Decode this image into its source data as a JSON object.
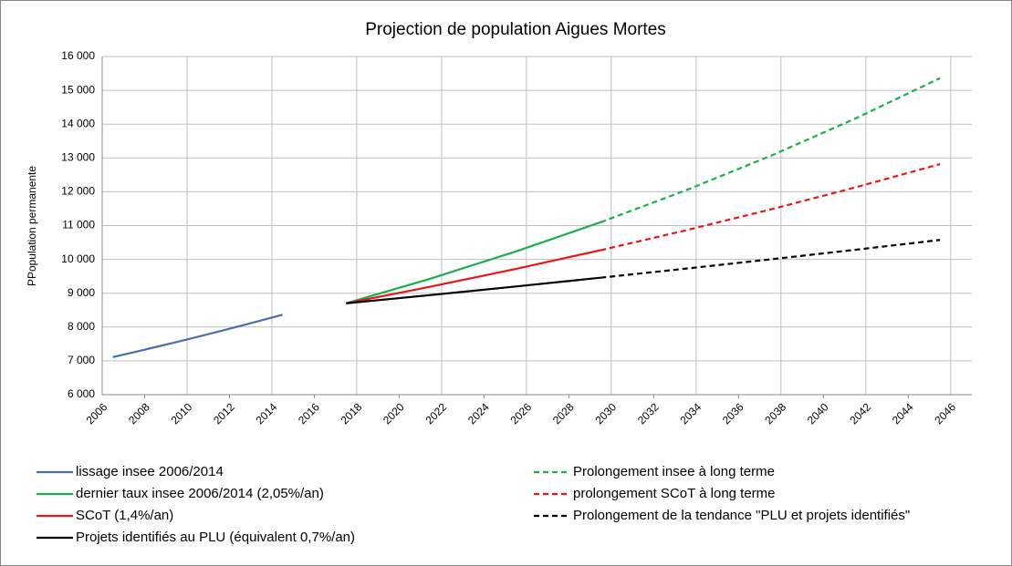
{
  "chart_data": {
    "type": "line",
    "title": "Projection de population Aigues Mortes",
    "y_label": "PPopulation permanente",
    "xlim": [
      2006,
      2047
    ],
    "xticks": [
      2006,
      2008,
      2010,
      2012,
      2014,
      2016,
      2018,
      2020,
      2022,
      2024,
      2026,
      2028,
      2030,
      2032,
      2034,
      2036,
      2038,
      2040,
      2042,
      2044,
      2046
    ],
    "ylim": [
      6000,
      16000
    ],
    "yticks": [
      {
        "value": 6000,
        "label": "6 000"
      },
      {
        "value": 7000,
        "label": "7 000"
      },
      {
        "value": 8000,
        "label": "8 000"
      },
      {
        "value": 9000,
        "label": "9 000"
      },
      {
        "value": 10000,
        "label": "10 000"
      },
      {
        "value": 11000,
        "label": "11 000"
      },
      {
        "value": 12000,
        "label": "12 000"
      },
      {
        "value": 13000,
        "label": "13 000"
      },
      {
        "value": 14000,
        "label": "14 000"
      },
      {
        "value": 15000,
        "label": "15 000"
      },
      {
        "value": 16000,
        "label": "16 000"
      }
    ],
    "grid": true,
    "series": [
      {
        "name": "lissage insee 2006/2014",
        "color": "#4a6fa5",
        "dashed": false,
        "x": [
          2006.5,
          2007.5,
          2008.5,
          2009.5,
          2010.5,
          2011.5,
          2012.5,
          2013.5,
          2014.5
        ],
        "values": [
          7110,
          7256,
          7405,
          7556,
          7711,
          7869,
          8031,
          8195,
          8363
        ]
      },
      {
        "name": "dernier taux insee 2006/2014 (2,05%/an)",
        "color": "#1aaf4b",
        "dashed": false,
        "x": [
          2017.5,
          2021.5,
          2025.5,
          2029.5
        ],
        "values": [
          8700,
          9436,
          10234,
          11100
        ]
      },
      {
        "name": "SCoT (1,4%/an)",
        "color": "#e8161b",
        "dashed": false,
        "x": [
          2017.5,
          2021.5,
          2025.5,
          2029.5
        ],
        "values": [
          8700,
          9195,
          9718,
          10272
        ]
      },
      {
        "name": "Projets identifiés au PLU (équivalent 0,7%/an)",
        "color": "#000000",
        "dashed": false,
        "x": [
          2017.5,
          2021.5,
          2025.5,
          2029.5
        ],
        "values": [
          8700,
          8946,
          9199,
          9459
        ]
      },
      {
        "name": "Prolongement insee à long terme",
        "color": "#1aaf4b",
        "dashed": true,
        "x": [
          2029.5,
          2033.5,
          2037.5,
          2041.5,
          2045.5
        ],
        "values": [
          11100,
          12039,
          13058,
          14163,
          15361
        ]
      },
      {
        "name": "prolongement SCoT à long terme",
        "color": "#e8161b",
        "dashed": true,
        "x": [
          2029.5,
          2033.5,
          2037.5,
          2041.5,
          2045.5
        ],
        "values": [
          10272,
          10857,
          11475,
          12128,
          12818
        ]
      },
      {
        "name": "Prolongement de la tendance \"PLU et projets identifiés\"",
        "color": "#000000",
        "dashed": true,
        "x": [
          2029.5,
          2033.5,
          2037.5,
          2041.5,
          2045.5
        ],
        "values": [
          9459,
          9726,
          10001,
          10284,
          10575
        ]
      }
    ]
  }
}
